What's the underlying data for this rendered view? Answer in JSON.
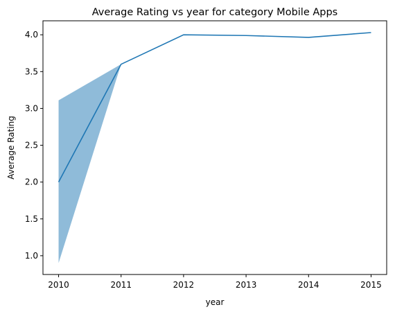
{
  "chart_data": {
    "type": "line",
    "title": "Average Rating vs year for category Mobile Apps",
    "xlabel": "year",
    "ylabel": "Average Rating",
    "x": [
      2010,
      2011,
      2012,
      2013,
      2014,
      2015
    ],
    "series": [
      {
        "values": [
          2.0,
          3.6,
          4.0,
          3.99,
          3.965,
          4.03
        ],
        "ci_lower": [
          0.9,
          3.6,
          4.0,
          3.99,
          3.965,
          4.03
        ],
        "ci_upper": [
          3.11,
          3.6,
          4.0,
          3.99,
          3.965,
          4.03
        ],
        "color": "#1f77b4",
        "band_color": "#1f77b4"
      }
    ],
    "xticks": [
      2010,
      2011,
      2012,
      2013,
      2014,
      2015
    ],
    "xtick_labels": [
      "2010",
      "2011",
      "2012",
      "2013",
      "2014",
      "2015"
    ],
    "yticks": [
      1.0,
      1.5,
      2.0,
      2.5,
      3.0,
      3.5,
      4.0
    ],
    "ytick_labels": [
      "1.0",
      "1.5",
      "2.0",
      "2.5",
      "3.0",
      "3.5",
      "4.0"
    ],
    "xlim": [
      2009.75,
      2015.25
    ],
    "ylim": [
      0.745,
      4.19
    ],
    "grid": false,
    "legend": "none"
  }
}
